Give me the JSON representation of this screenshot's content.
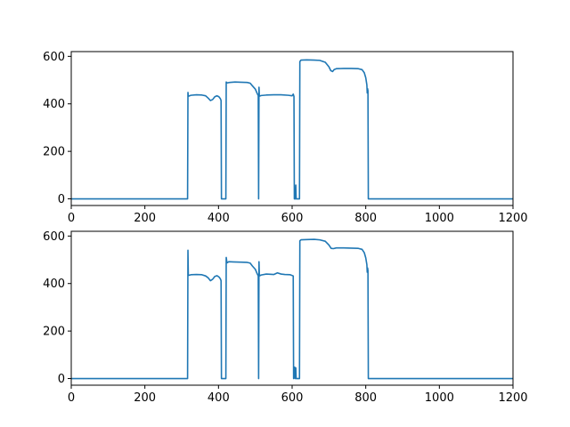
{
  "chart_data": [
    {
      "type": "line",
      "title": "",
      "xlabel": "",
      "ylabel": "",
      "xlim": [
        0,
        1200
      ],
      "ylim": [
        -28,
        620
      ],
      "xticks": [
        0,
        200,
        400,
        600,
        800,
        1000,
        1200
      ],
      "yticks": [
        0,
        200,
        400,
        600
      ],
      "xtick_labels": [
        "0",
        "200",
        "400",
        "600",
        "800",
        "1000",
        "1200"
      ],
      "ytick_labels": [
        "0",
        "200",
        "400",
        "600"
      ],
      "grid": false,
      "color": "#1f77b4",
      "series": [
        {
          "points": [
            [
              0,
              0
            ],
            [
              316,
              0
            ],
            [
              317,
              448
            ],
            [
              318,
              432
            ],
            [
              325,
              436
            ],
            [
              340,
              438
            ],
            [
              355,
              437
            ],
            [
              365,
              434
            ],
            [
              372,
              424
            ],
            [
              378,
              414
            ],
            [
              384,
              418
            ],
            [
              390,
              430
            ],
            [
              396,
              434
            ],
            [
              401,
              430
            ],
            [
              405,
              422
            ],
            [
              407,
              414
            ],
            [
              408,
              0
            ],
            [
              420,
              0
            ],
            [
              421,
              492
            ],
            [
              423,
              488
            ],
            [
              430,
              490
            ],
            [
              445,
              492
            ],
            [
              460,
              491
            ],
            [
              478,
              490
            ],
            [
              486,
              487
            ],
            [
              492,
              476
            ],
            [
              500,
              462
            ],
            [
              505,
              444
            ],
            [
              508,
              435
            ],
            [
              509,
              0
            ],
            [
              510,
              470
            ],
            [
              511,
              432
            ],
            [
              516,
              435
            ],
            [
              530,
              437
            ],
            [
              550,
              438
            ],
            [
              570,
              438
            ],
            [
              590,
              436
            ],
            [
              600,
              434
            ],
            [
              603,
              441
            ],
            [
              605,
              431
            ],
            [
              606,
              0
            ],
            [
              609,
              0
            ],
            [
              610,
              58
            ],
            [
              611,
              0
            ],
            [
              620,
              0
            ],
            [
              621,
              578
            ],
            [
              624,
              584
            ],
            [
              640,
              585
            ],
            [
              660,
              584
            ],
            [
              675,
              583
            ],
            [
              690,
              575
            ],
            [
              700,
              556
            ],
            [
              705,
              540
            ],
            [
              710,
              536
            ],
            [
              714,
              544
            ],
            [
              720,
              548
            ],
            [
              740,
              549
            ],
            [
              760,
              549
            ],
            [
              780,
              548
            ],
            [
              790,
              544
            ],
            [
              796,
              531
            ],
            [
              800,
              510
            ],
            [
              803,
              480
            ],
            [
              804,
              446
            ],
            [
              805,
              464
            ],
            [
              806,
              455
            ],
            [
              807,
              0
            ],
            [
              1200,
              0
            ]
          ]
        }
      ]
    },
    {
      "type": "line",
      "title": "",
      "xlabel": "",
      "ylabel": "",
      "xlim": [
        0,
        1200
      ],
      "ylim": [
        -28,
        620
      ],
      "xticks": [
        0,
        200,
        400,
        600,
        800,
        1000,
        1200
      ],
      "yticks": [
        0,
        200,
        400,
        600
      ],
      "xtick_labels": [
        "0",
        "200",
        "400",
        "600",
        "800",
        "1000",
        "1200"
      ],
      "ytick_labels": [
        "0",
        "200",
        "400",
        "600"
      ],
      "grid": false,
      "color": "#1f77b4",
      "series": [
        {
          "points": [
            [
              0,
              0
            ],
            [
              316,
              0
            ],
            [
              317,
              540
            ],
            [
              318,
              434
            ],
            [
              325,
              437
            ],
            [
              340,
              438
            ],
            [
              355,
              437
            ],
            [
              365,
              432
            ],
            [
              372,
              424
            ],
            [
              378,
              412
            ],
            [
              384,
              418
            ],
            [
              390,
              430
            ],
            [
              396,
              433
            ],
            [
              401,
              428
            ],
            [
              405,
              420
            ],
            [
              407,
              412
            ],
            [
              408,
              0
            ],
            [
              420,
              0
            ],
            [
              421,
              510
            ],
            [
              423,
              487
            ],
            [
              428,
              492
            ],
            [
              440,
              491
            ],
            [
              460,
              490
            ],
            [
              478,
              489
            ],
            [
              486,
              486
            ],
            [
              492,
              474
            ],
            [
              500,
              460
            ],
            [
              504,
              445
            ],
            [
              508,
              432
            ],
            [
              509,
              0
            ],
            [
              510,
              492
            ],
            [
              511,
              432
            ],
            [
              516,
              436
            ],
            [
              530,
              440
            ],
            [
              550,
              438
            ],
            [
              560,
              445
            ],
            [
              570,
              440
            ],
            [
              580,
              438
            ],
            [
              595,
              437
            ],
            [
              603,
              432
            ],
            [
              604,
              0
            ],
            [
              607,
              48
            ],
            [
              608,
              0
            ],
            [
              610,
              45
            ],
            [
              611,
              0
            ],
            [
              620,
              0
            ],
            [
              621,
              580
            ],
            [
              624,
              584
            ],
            [
              640,
              585
            ],
            [
              660,
              586
            ],
            [
              675,
              584
            ],
            [
              690,
              578
            ],
            [
              700,
              562
            ],
            [
              706,
              548
            ],
            [
              712,
              547
            ],
            [
              720,
              550
            ],
            [
              740,
              550
            ],
            [
              760,
              549
            ],
            [
              780,
              548
            ],
            [
              790,
              544
            ],
            [
              796,
              530
            ],
            [
              800,
              508
            ],
            [
              803,
              480
            ],
            [
              804,
              448
            ],
            [
              805,
              466
            ],
            [
              806,
              455
            ],
            [
              807,
              0
            ],
            [
              1200,
              0
            ]
          ]
        }
      ]
    }
  ]
}
